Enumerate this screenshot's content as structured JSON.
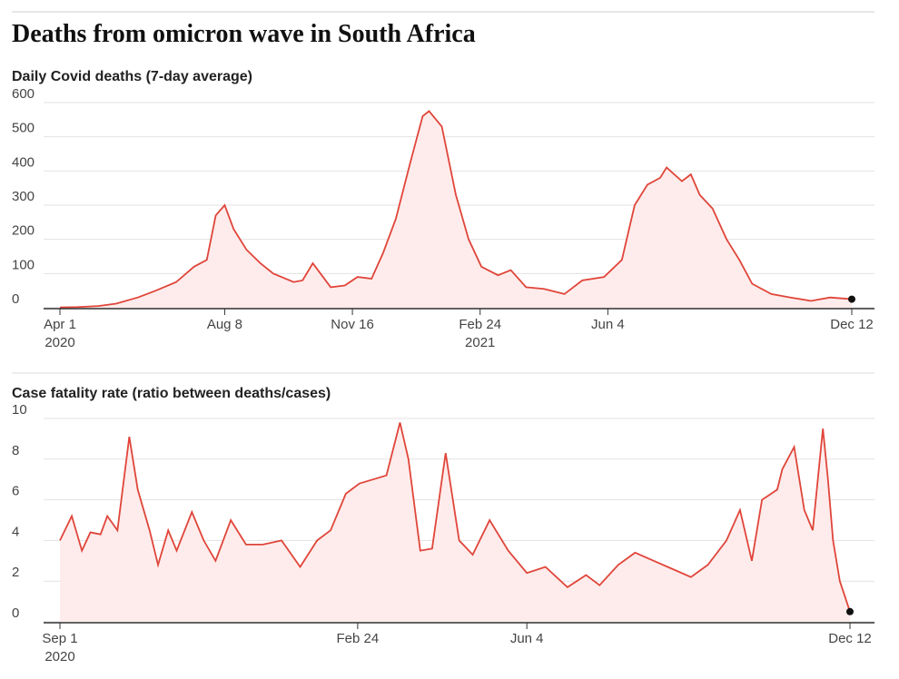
{
  "title": "Deaths from omicron wave in South Africa",
  "chart_data": [
    {
      "type": "line",
      "title": "Daily Covid deaths (7-day average)",
      "color": "#e0453a",
      "fill": "#fdeceb",
      "grid": true,
      "x": [
        "2020-04-01",
        "2020-04-15",
        "2020-05-01",
        "2020-05-15",
        "2020-06-01",
        "2020-06-15",
        "2020-07-01",
        "2020-07-15",
        "2020-07-25",
        "2020-08-01",
        "2020-08-08",
        "2020-08-15",
        "2020-08-25",
        "2020-09-05",
        "2020-09-15",
        "2020-10-01",
        "2020-10-08",
        "2020-10-16",
        "2020-10-30",
        "2020-11-10",
        "2020-11-20",
        "2020-12-01",
        "2020-12-10",
        "2020-12-20",
        "2020-12-31",
        "2021-01-10",
        "2021-01-15",
        "2021-01-25",
        "2021-02-05",
        "2021-02-15",
        "2021-02-25",
        "2021-03-10",
        "2021-03-20",
        "2021-04-01",
        "2021-04-15",
        "2021-05-01",
        "2021-05-15",
        "2021-06-01",
        "2021-06-15",
        "2021-06-25",
        "2021-07-05",
        "2021-07-15",
        "2021-07-20",
        "2021-08-01",
        "2021-08-08",
        "2021-08-15",
        "2021-08-25",
        "2021-09-05",
        "2021-09-15",
        "2021-09-25",
        "2021-10-10",
        "2021-10-25",
        "2021-11-10",
        "2021-11-25",
        "2021-12-12"
      ],
      "values": [
        1,
        2,
        5,
        12,
        30,
        50,
        75,
        120,
        140,
        270,
        300,
        230,
        170,
        130,
        100,
        75,
        80,
        130,
        60,
        65,
        90,
        85,
        160,
        260,
        420,
        560,
        575,
        530,
        330,
        200,
        120,
        95,
        110,
        60,
        55,
        40,
        80,
        90,
        140,
        300,
        360,
        380,
        410,
        370,
        390,
        330,
        290,
        200,
        140,
        70,
        40,
        30,
        20,
        30,
        25
      ],
      "xlim": [
        "2020-04-01",
        "2021-12-12"
      ],
      "xticks": [
        {
          "value": "2020-04-01",
          "label": "Apr 1\n2020"
        },
        {
          "value": "2020-08-08",
          "label": "Aug 8"
        },
        {
          "value": "2020-11-16",
          "label": "Nov 16"
        },
        {
          "value": "2021-02-24",
          "label": "Feb 24\n2021"
        },
        {
          "value": "2021-06-04",
          "label": "Jun 4"
        },
        {
          "value": "2021-12-12",
          "label": "Dec 12"
        }
      ],
      "ylim": [
        0,
        600
      ],
      "yticks": [
        0,
        100,
        200,
        300,
        400,
        500,
        600
      ]
    },
    {
      "type": "line",
      "title": "Case fatality rate (ratio between deaths/cases)",
      "color": "#e0453a",
      "fill": "#fdeceb",
      "grid": true,
      "x": [
        "2020-09-01",
        "2020-09-08",
        "2020-09-14",
        "2020-09-19",
        "2020-09-25",
        "2020-09-29",
        "2020-10-05",
        "2020-10-12",
        "2020-10-17",
        "2020-10-24",
        "2020-10-29",
        "2020-11-04",
        "2020-11-09",
        "2020-11-18",
        "2020-11-25",
        "2020-12-02",
        "2020-12-11",
        "2020-12-20",
        "2020-12-30",
        "2021-01-10",
        "2021-01-21",
        "2021-01-31",
        "2021-02-08",
        "2021-02-17",
        "2021-02-25",
        "2021-03-05",
        "2021-03-13",
        "2021-03-21",
        "2021-03-26",
        "2021-04-02",
        "2021-04-09",
        "2021-04-17",
        "2021-04-25",
        "2021-05-03",
        "2021-05-13",
        "2021-05-24",
        "2021-06-04",
        "2021-06-15",
        "2021-06-28",
        "2021-07-09",
        "2021-07-17",
        "2021-07-28",
        "2021-08-07",
        "2021-08-18",
        "2021-08-29",
        "2021-09-09",
        "2021-09-19",
        "2021-09-30",
        "2021-10-08",
        "2021-10-15",
        "2021-10-21",
        "2021-10-30",
        "2021-11-02",
        "2021-11-09",
        "2021-11-15",
        "2021-11-20",
        "2021-11-26",
        "2021-11-29",
        "2021-12-02",
        "2021-12-06",
        "2021-12-12"
      ],
      "values": [
        4,
        5.2,
        3.5,
        4.4,
        4.3,
        5.2,
        4.5,
        9.1,
        6.5,
        4.5,
        2.8,
        4.5,
        3.5,
        5.4,
        4,
        3,
        5,
        3.8,
        3.8,
        4,
        2.7,
        4,
        4.5,
        6.3,
        6.8,
        7,
        7.2,
        9.8,
        8,
        3.5,
        3.6,
        8.3,
        4,
        3.3,
        5,
        3.5,
        2.4,
        2.7,
        1.7,
        2.3,
        1.8,
        2.8,
        3.4,
        3,
        2.6,
        2.2,
        2.8,
        4,
        5.5,
        3,
        6,
        6.5,
        7.5,
        8.6,
        5.5,
        4.5,
        9.5,
        7,
        4,
        2,
        0.5
      ],
      "xlim": [
        "2020-09-01",
        "2021-12-12"
      ],
      "xticks": [
        {
          "value": "2020-09-01",
          "label": "Sep 1\n2020"
        },
        {
          "value": "2021-02-24",
          "label": "Feb 24"
        },
        {
          "value": "2021-06-04",
          "label": "Jun 4"
        },
        {
          "value": "2021-12-12",
          "label": "Dec 12"
        }
      ],
      "ylim": [
        0,
        10
      ],
      "yticks": [
        0,
        2,
        4,
        6,
        8,
        10
      ]
    }
  ]
}
